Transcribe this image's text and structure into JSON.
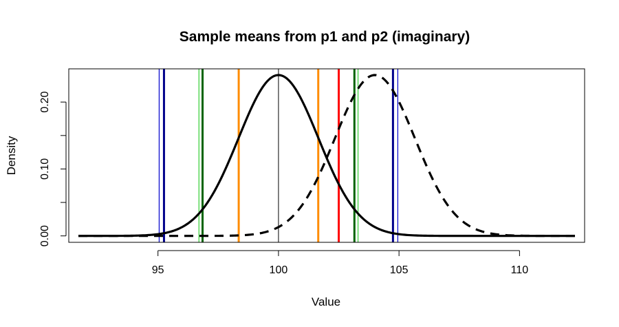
{
  "chart_data": {
    "type": "line",
    "title": "Sample means from p1 and p2 (imaginary)",
    "xlabel": "Value",
    "ylabel": "Density",
    "xlim": [
      91.3,
      112.7
    ],
    "ylim": [
      -0.0096,
      0.2496
    ],
    "x_ticks": [
      95,
      100,
      105,
      110
    ],
    "y_ticks": [
      0.0,
      0.05,
      0.1,
      0.15,
      0.2
    ],
    "y_tick_labels": [
      "0.00",
      "",
      "0.10",
      "",
      "0.20"
    ],
    "curve_range": [
      91.7,
      112.3
    ],
    "series": [
      {
        "mean": 100.0,
        "sd": 1.66,
        "style": "solid",
        "color": "#000000"
      },
      {
        "mean": 104.0,
        "sd": 1.66,
        "style": "dashed",
        "color": "#000000"
      }
    ],
    "vlines": [
      {
        "x": 95.05,
        "color": "#0000cd",
        "weight": "thin"
      },
      {
        "x": 95.25,
        "color": "#00008b",
        "weight": "thick"
      },
      {
        "x": 96.7,
        "color": "#32cd32",
        "weight": "thin"
      },
      {
        "x": 96.85,
        "color": "#006400",
        "weight": "thick"
      },
      {
        "x": 98.35,
        "color": "#ff8c00",
        "weight": "thick"
      },
      {
        "x": 100.0,
        "color": "#000000",
        "weight": "hair"
      },
      {
        "x": 101.65,
        "color": "#ff8c00",
        "weight": "thick"
      },
      {
        "x": 102.5,
        "color": "#ff0000",
        "weight": "thick"
      },
      {
        "x": 103.15,
        "color": "#006400",
        "weight": "thick"
      },
      {
        "x": 103.3,
        "color": "#32cd32",
        "weight": "thin"
      },
      {
        "x": 104.75,
        "color": "#00008b",
        "weight": "thick"
      },
      {
        "x": 104.95,
        "color": "#0000cd",
        "weight": "thin"
      }
    ]
  }
}
